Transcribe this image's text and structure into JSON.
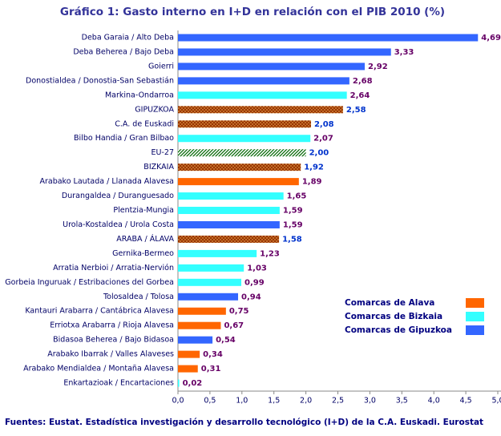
{
  "chart_data": {
    "type": "hbar",
    "title": "Gráfico 1: Gasto interno en I+D en relación con el PIB 2010 (%)",
    "footnote": "Fuentes: Eustat. Estadística investigación y desarrollo tecnológico (I+D) de la C.A. Euskadi. Eurostat",
    "categories": [
      "Deba Garaia / Alto Deba",
      "Deba Beherea / Bajo Deba",
      "Goierri",
      "Donostialdea / Donostia-San Sebastián",
      "Markina-Ondarroa",
      "GIPUZKOA",
      "C.A. de Euskadi",
      "Bilbo Handia / Gran Bilbao",
      "EU-27",
      "BIZKAIA",
      "Arabako Lautada / Llanada Alavesa",
      "Durangaldea / Duranguesado",
      "Plentzia-Mungia",
      "Urola-Kostaldea / Urola Costa",
      "ARABA / ÁLAVA",
      "Gernika-Bermeo",
      "Arratia Nerbioi / Arratia-Nervión",
      "Gorbeia Inguruak / Estribaciones del Gorbea",
      "Tolosaldea / Tolosa",
      "Kantauri Arabarra / Cantábrica Alavesa",
      "Erriotxa Arabarra / Rioja Alavesa",
      "Bidasoa Beherea / Bajo Bidasoa",
      "Arabako Ibarrak / Valles Alaveses",
      "Arabako Mendialdea / Montaña Alavesa",
      "Enkartazioak / Encartaciones"
    ],
    "values": [
      4.69,
      3.33,
      2.92,
      2.68,
      2.64,
      2.58,
      2.08,
      2.07,
      2.0,
      1.92,
      1.89,
      1.65,
      1.59,
      1.59,
      1.58,
      1.23,
      1.03,
      0.99,
      0.94,
      0.75,
      0.67,
      0.54,
      0.34,
      0.31,
      0.02
    ],
    "value_labels": [
      "4,69",
      "3,33",
      "2,92",
      "2,68",
      "2,64",
      "2,58",
      "2,08",
      "2,07",
      "2,00",
      "1,92",
      "1,89",
      "1,65",
      "1,59",
      "1,59",
      "1,58",
      "1,23",
      "1,03",
      "0,99",
      "0,94",
      "0,75",
      "0,67",
      "0,54",
      "0,34",
      "0,31",
      "0,02"
    ],
    "colors": [
      "#3366ff",
      "#3366ff",
      "#3366ff",
      "#3366ff",
      "#33ffff",
      "#993300",
      "#993300",
      "#33ffff",
      "#006600",
      "#993300",
      "#ff6600",
      "#33ffff",
      "#33ffff",
      "#3366ff",
      "#993300",
      "#33ffff",
      "#33ffff",
      "#33ffff",
      "#3366ff",
      "#ff6600",
      "#ff6600",
      "#3366ff",
      "#ff6600",
      "#ff6600",
      "#33ffff"
    ],
    "patterned": [
      false,
      false,
      false,
      false,
      false,
      true,
      true,
      false,
      true,
      true,
      false,
      false,
      false,
      false,
      true,
      false,
      false,
      false,
      false,
      false,
      false,
      false,
      false,
      false,
      false
    ],
    "legend": [
      {
        "name": "Comarcas de Alava",
        "color": "#ff6600"
      },
      {
        "name": "Comarcas de Bizkaia",
        "color": "#33ffff"
      },
      {
        "name": "Comarcas de Gipuzkoa",
        "color": "#3366ff"
      }
    ],
    "xlim": [
      0,
      5
    ],
    "xticks": [
      {
        "value": 0,
        "label": "0,0"
      },
      {
        "value": 0.5,
        "label": "0,5"
      },
      {
        "value": 1,
        "label": "1,0"
      },
      {
        "value": 1.5,
        "label": "1,5"
      },
      {
        "value": 2,
        "label": "2,0"
      },
      {
        "value": 2.5,
        "label": "2,5"
      },
      {
        "value": 3,
        "label": "3,0"
      },
      {
        "value": 3.5,
        "label": "3,5"
      },
      {
        "value": 4,
        "label": "4,0"
      },
      {
        "value": 4.5,
        "label": "4,5"
      },
      {
        "value": 5,
        "label": "5,0"
      }
    ]
  }
}
